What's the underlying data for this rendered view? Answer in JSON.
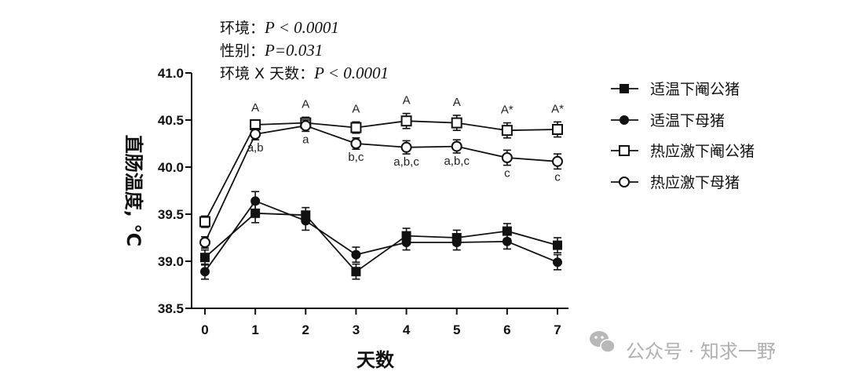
{
  "chart_data": {
    "type": "line",
    "title": "",
    "xlabel": "天数",
    "ylabel": "直肠温度, ℃",
    "xlim": [
      0,
      7
    ],
    "ylim": [
      38.5,
      41.0
    ],
    "x": [
      0,
      1,
      2,
      3,
      4,
      5,
      6,
      7
    ],
    "x_ticks": [
      "0",
      "1",
      "2",
      "3",
      "4",
      "5",
      "6",
      "7"
    ],
    "y_ticks": [
      "38.5",
      "39.0",
      "39.5",
      "40.0",
      "40.5",
      "41.0"
    ],
    "grid": false,
    "legend_position": "right",
    "series": [
      {
        "name": "适温下阉公猪",
        "marker": "square-filled",
        "values": [
          39.04,
          39.51,
          39.49,
          38.89,
          39.27,
          39.25,
          39.32,
          39.17
        ],
        "errors": [
          0.08,
          0.1,
          0.08,
          0.08,
          0.08,
          0.08,
          0.08,
          0.08
        ]
      },
      {
        "name": "适温下母猪",
        "marker": "circle-filled",
        "values": [
          38.89,
          39.64,
          39.43,
          39.07,
          39.2,
          39.2,
          39.21,
          38.99
        ],
        "errors": [
          0.08,
          0.1,
          0.1,
          0.08,
          0.08,
          0.08,
          0.08,
          0.08
        ]
      },
      {
        "name": "热应激下阉公猪",
        "marker": "square-open",
        "values": [
          39.42,
          40.45,
          40.47,
          40.42,
          40.49,
          40.47,
          40.39,
          40.4
        ],
        "errors": [
          0.06,
          0.04,
          0.06,
          0.06,
          0.08,
          0.08,
          0.08,
          0.08
        ]
      },
      {
        "name": "热应激下母猪",
        "marker": "circle-open",
        "values": [
          39.2,
          40.35,
          40.44,
          40.25,
          40.21,
          40.22,
          40.1,
          40.06
        ],
        "errors": [
          0.06,
          0.06,
          0.06,
          0.06,
          0.07,
          0.07,
          0.08,
          0.08
        ]
      }
    ],
    "annotations": {
      "upper": [
        {
          "x": 1,
          "text": "A"
        },
        {
          "x": 2,
          "text": "A"
        },
        {
          "x": 3,
          "text": "A"
        },
        {
          "x": 4,
          "text": "A"
        },
        {
          "x": 5,
          "text": "A"
        },
        {
          "x": 6,
          "text": "A*"
        },
        {
          "x": 7,
          "text": "A*"
        }
      ],
      "lower": [
        {
          "x": 1,
          "text": "a,b"
        },
        {
          "x": 2,
          "text": "a"
        },
        {
          "x": 3,
          "text": "b,c"
        },
        {
          "x": 4,
          "text": "a,b,c"
        },
        {
          "x": 5,
          "text": "a,b,c"
        },
        {
          "x": 6,
          "text": "c"
        },
        {
          "x": 7,
          "text": "c"
        }
      ]
    },
    "stats": [
      {
        "label": "环境：",
        "p_text": "P < 0.0001"
      },
      {
        "label": "性别：",
        "p_text": "P=0.031"
      },
      {
        "label": "环境 X 天数：",
        "p_text": "P < 0.0001"
      }
    ]
  },
  "watermark": {
    "text": "公众号 · 知求一野",
    "icon": "wechat-icon"
  },
  "colors": {
    "ink": "#111111",
    "watermark": "#b0b0b0"
  }
}
